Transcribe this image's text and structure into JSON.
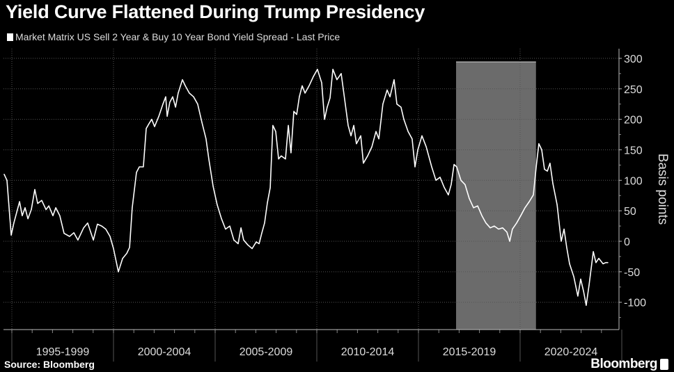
{
  "chart_data": {
    "type": "line",
    "title": "Yield Curve Flattened During Trump Presidency",
    "legend": [
      {
        "label": "Market Matrix US Sell 2 Year & Buy 10 Year Bond Yield Spread - Last Price",
        "color": "#ffffff"
      }
    ],
    "legend_placement": "top-left",
    "ylabel": "Basis points",
    "xlabel": "",
    "ylim": [
      -145,
      316
    ],
    "xlim": [
      1994.55,
      2024.6
    ],
    "y_ticks": [
      300,
      250,
      200,
      150,
      100,
      50,
      0,
      -50,
      -100
    ],
    "y_tick_labels": [
      "300",
      "250",
      "200",
      "150",
      "100",
      "50",
      "0",
      "-50",
      "-100"
    ],
    "x_category_bounds": [
      1995,
      2000,
      2005,
      2010,
      2015,
      2020,
      2025
    ],
    "x_tick_labels": [
      "1995-1999",
      "2000-2004",
      "2005-2009",
      "2010-2014",
      "2015-2019",
      "2020-2024"
    ],
    "grid": true,
    "shaded_region": {
      "x": [
        2016.85,
        2020.78
      ],
      "color": "#6b6b6b",
      "y_top": 294
    },
    "series": [
      {
        "name": "Market Matrix US Sell 2 Year & Buy 10 Year Bond Yield Spread - Last Price",
        "color": "#ffffff",
        "x": [
          1994.62,
          1994.76,
          1994.97,
          1995.1,
          1995.38,
          1995.51,
          1995.65,
          1995.79,
          1995.96,
          1996.13,
          1996.27,
          1996.47,
          1996.68,
          1996.82,
          1997.02,
          1997.16,
          1997.36,
          1997.57,
          1997.84,
          1998.05,
          1998.25,
          1998.53,
          1998.73,
          1999.01,
          1999.21,
          1999.42,
          1999.62,
          1999.83,
          2000.0,
          2000.24,
          2000.45,
          2000.65,
          2000.79,
          2000.92,
          2001.13,
          2001.27,
          2001.47,
          2001.61,
          2001.75,
          2001.88,
          2002.02,
          2002.23,
          2002.43,
          2002.57,
          2002.64,
          2002.77,
          2002.91,
          2003.05,
          2003.18,
          2003.39,
          2003.53,
          2003.73,
          2003.94,
          2004.14,
          2004.35,
          2004.55,
          2004.69,
          2004.9,
          2005.1,
          2005.31,
          2005.51,
          2005.72,
          2005.92,
          2006.13,
          2006.27,
          2006.4,
          2006.61,
          2006.82,
          2007.02,
          2007.16,
          2007.29,
          2007.43,
          2007.57,
          2007.71,
          2007.84,
          2007.98,
          2008.12,
          2008.25,
          2008.46,
          2008.6,
          2008.73,
          2008.87,
          2009.01,
          2009.14,
          2009.28,
          2009.42,
          2009.62,
          2009.83,
          2010.03,
          2010.24,
          2010.38,
          2010.51,
          2010.65,
          2010.79,
          2010.99,
          2011.2,
          2011.4,
          2011.54,
          2011.68,
          2011.82,
          2011.95,
          2012.16,
          2012.29,
          2012.5,
          2012.71,
          2012.91,
          2013.05,
          2013.25,
          2013.46,
          2013.6,
          2013.8,
          2013.94,
          2014.14,
          2014.28,
          2014.49,
          2014.69,
          2014.83,
          2014.97,
          2015.17,
          2015.38,
          2015.65,
          2015.86,
          2016.06,
          2016.27,
          2016.47,
          2016.61,
          2016.75,
          2016.88,
          2017.09,
          2017.29,
          2017.5,
          2017.71,
          2017.91,
          2018.12,
          2018.32,
          2018.53,
          2018.73,
          2018.94,
          2019.14,
          2019.35,
          2019.49,
          2019.62,
          2019.83,
          2020.03,
          2020.24,
          2020.45,
          2020.65,
          2020.79,
          2020.92,
          2021.06,
          2021.2,
          2021.34,
          2021.47,
          2021.61,
          2021.82,
          2022.02,
          2022.16,
          2022.29,
          2022.43,
          2022.64,
          2022.84,
          2022.98,
          2023.12,
          2023.25,
          2023.39,
          2023.6,
          2023.73,
          2023.87,
          2024.08,
          2024.21,
          2024.32
        ],
        "values": [
          110,
          100,
          10,
          30,
          65,
          42,
          55,
          37,
          52,
          85,
          62,
          67,
          52,
          58,
          42,
          55,
          42,
          13,
          8,
          14,
          2,
          22,
          30,
          2,
          28,
          25,
          20,
          8,
          -12,
          -50,
          -28,
          -20,
          -10,
          55,
          113,
          122,
          122,
          185,
          193,
          200,
          188,
          205,
          225,
          237,
          205,
          228,
          237,
          220,
          243,
          265,
          255,
          243,
          237,
          225,
          195,
          168,
          135,
          90,
          60,
          37,
          20,
          25,
          2,
          -4,
          22,
          2,
          -6,
          -12,
          -1,
          -4,
          13,
          30,
          63,
          88,
          190,
          180,
          135,
          140,
          135,
          190,
          145,
          213,
          208,
          237,
          255,
          243,
          255,
          270,
          282,
          260,
          200,
          220,
          235,
          282,
          265,
          275,
          225,
          190,
          173,
          190,
          160,
          173,
          128,
          140,
          155,
          180,
          168,
          225,
          248,
          237,
          265,
          225,
          220,
          200,
          180,
          168,
          122,
          150,
          173,
          155,
          122,
          100,
          105,
          88,
          76,
          93,
          126,
          122,
          100,
          93,
          70,
          55,
          58,
          42,
          30,
          22,
          25,
          20,
          22,
          15,
          0,
          20,
          30,
          42,
          55,
          65,
          76,
          122,
          160,
          150,
          118,
          115,
          128,
          95,
          60,
          0,
          20,
          -10,
          -37,
          -58,
          -90,
          -62,
          -82,
          -105,
          -72,
          -17,
          -35,
          -28,
          -37,
          -35,
          -35
        ]
      }
    ]
  },
  "footer": {
    "source": "Source: Bloomberg",
    "brand": "Bloomberg"
  }
}
